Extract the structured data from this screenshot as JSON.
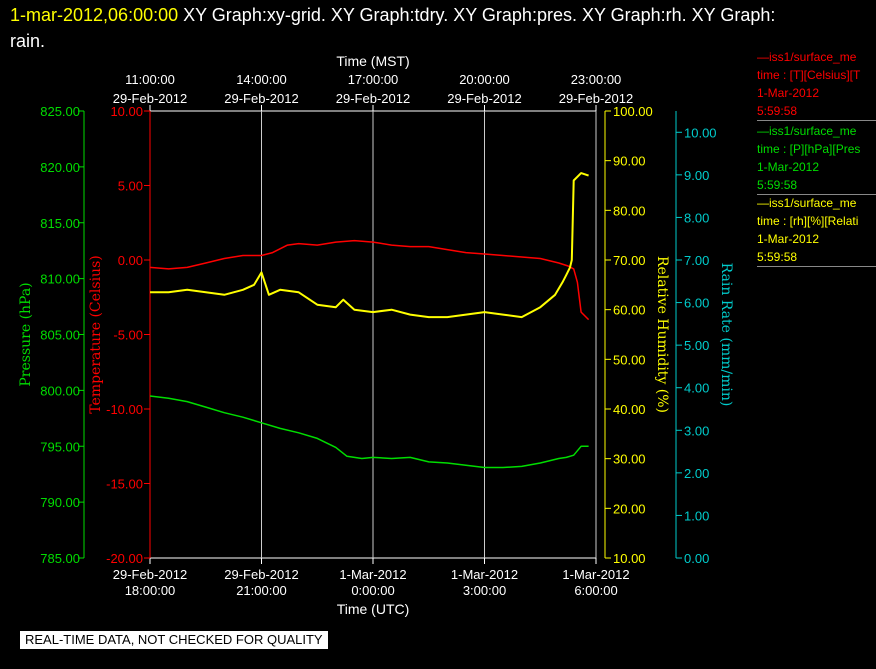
{
  "header": {
    "timestamp": "1-mar-2012,06:00:00",
    "graphs_line": "  XY Graph:xy-grid.  XY Graph:tdry.  XY Graph:pres.  XY Graph:rh.  XY Graph:",
    "graphs_line2": "rain."
  },
  "footer": {
    "label": "REAL-TIME DATA, NOT CHECKED FOR QUALITY"
  },
  "legend": [
    {
      "line1": "—iss1/surface_me",
      "line2": "time : [T][Celsius][T",
      "line3": "1-Mar-2012",
      "line4": "5:59:58",
      "color": "#ff0000"
    },
    {
      "line1": "—iss1/surface_me",
      "line2": "time : [P][hPa][Pres",
      "line3": "1-Mar-2012",
      "line4": "5:59:58",
      "color": "#00dd00"
    },
    {
      "line1": "—iss1/surface_me",
      "line2": "time : [rh][%][Relati",
      "line3": "1-Mar-2012",
      "line4": "5:59:58",
      "color": "#ffff00"
    }
  ],
  "chart_data": {
    "type": "line",
    "top_axis": {
      "title": "Time (MST)",
      "ticks": [
        {
          "time": "11:00:00",
          "date": "29-Feb-2012"
        },
        {
          "time": "14:00:00",
          "date": "29-Feb-2012"
        },
        {
          "time": "17:00:00",
          "date": "29-Feb-2012"
        },
        {
          "time": "20:00:00",
          "date": "29-Feb-2012"
        },
        {
          "time": "23:00:00",
          "date": "29-Feb-2012"
        }
      ]
    },
    "bottom_axis": {
      "title": "Time (UTC)",
      "xlim": [
        "2012-02-29 18:00",
        "2012-03-01 06:00"
      ],
      "ticks": [
        {
          "date": "29-Feb-2012",
          "time": "18:00:00"
        },
        {
          "date": "29-Feb-2012",
          "time": "21:00:00"
        },
        {
          "date": "1-Mar-2012",
          "time": "0:00:00"
        },
        {
          "date": "1-Mar-2012",
          "time": "3:00:00"
        },
        {
          "date": "1-Mar-2012",
          "time": "6:00:00"
        }
      ]
    },
    "axes": {
      "pressure": {
        "label": "Pressure (hPa)",
        "range": [
          785,
          825
        ],
        "ticks": [
          "785.00",
          "790.00",
          "795.00",
          "800.00",
          "805.00",
          "810.00",
          "815.00",
          "820.00",
          "825.00"
        ],
        "color": "#00dd00"
      },
      "temperature": {
        "label": "Temperature (Celsius)",
        "range": [
          -20,
          10
        ],
        "ticks": [
          "-20.00",
          "-15.00",
          "-10.00",
          "-5.00",
          "0.00",
          "5.00",
          "10.00"
        ],
        "color": "#ff0000"
      },
      "humidity": {
        "label": "Relative Humidity (%)",
        "range": [
          10,
          100
        ],
        "ticks": [
          "10.00",
          "20.00",
          "30.00",
          "40.00",
          "50.00",
          "60.00",
          "70.00",
          "80.00",
          "90.00",
          "100.00"
        ],
        "color": "#ffff00"
      },
      "rain": {
        "label": "Rain Rate (mm/min)",
        "range": [
          0,
          10.5
        ],
        "ticks": [
          "0.00",
          "1.00",
          "2.00",
          "3.00",
          "4.00",
          "5.00",
          "6.00",
          "7.00",
          "8.00",
          "9.00",
          "10.00"
        ],
        "color": "#00cccc"
      }
    },
    "grid": "vertical lines at bottom-axis ticks",
    "series": [
      {
        "name": "iss1/surface_met time : [T][Celsius][T",
        "axis": "temperature",
        "color": "#ff0000",
        "x_hours_utc": [
          0,
          0.5,
          1,
          1.5,
          2,
          2.5,
          3,
          3.3,
          3.7,
          4,
          4.5,
          5,
          5.5,
          6,
          6.5,
          7,
          7.5,
          8,
          8.5,
          9,
          9.5,
          10,
          10.5,
          11,
          11.25,
          11.4,
          11.5,
          11.6,
          11.8
        ],
        "values": [
          -0.5,
          -0.6,
          -0.5,
          -0.2,
          0.1,
          0.3,
          0.3,
          0.5,
          1.0,
          1.1,
          1.0,
          1.2,
          1.3,
          1.2,
          1.0,
          0.9,
          0.9,
          0.7,
          0.5,
          0.4,
          0.3,
          0.2,
          0.1,
          -0.2,
          -0.4,
          -0.6,
          -1.5,
          -3.5,
          -4.0
        ]
      },
      {
        "name": "iss1/surface_met time : [P][hPa][Pres",
        "axis": "pressure",
        "color": "#00dd00",
        "x_hours_utc": [
          0,
          0.5,
          1,
          1.5,
          2,
          2.5,
          3,
          3.5,
          4,
          4.5,
          5,
          5.3,
          5.7,
          6,
          6.5,
          7,
          7.5,
          8,
          8.5,
          9,
          9.5,
          10,
          10.5,
          11,
          11.2,
          11.4,
          11.6,
          11.8
        ],
        "values": [
          799.5,
          799.3,
          799.0,
          798.5,
          798.0,
          797.6,
          797.1,
          796.6,
          796.2,
          795.7,
          794.9,
          794.1,
          793.9,
          794.0,
          793.9,
          794.0,
          793.6,
          793.5,
          793.3,
          793.1,
          793.1,
          793.2,
          793.5,
          793.9,
          794.0,
          794.2,
          795.0,
          795.0
        ]
      },
      {
        "name": "iss1/surface_met time : [rh][%][Relati",
        "axis": "humidity",
        "color": "#ffff00",
        "x_hours_utc": [
          0,
          0.5,
          1,
          1.5,
          2,
          2.5,
          2.8,
          3,
          3.2,
          3.5,
          4,
          4.5,
          5,
          5.2,
          5.5,
          6,
          6.5,
          7,
          7.5,
          8,
          8.5,
          9,
          9.5,
          10,
          10.5,
          10.9,
          11.1,
          11.2,
          11.3,
          11.35,
          11.4,
          11.6,
          11.8
        ],
        "values": [
          63.5,
          63.5,
          64.0,
          63.5,
          63.0,
          64.0,
          65.0,
          67.5,
          63.0,
          64.0,
          63.5,
          61.0,
          60.5,
          62.0,
          60.0,
          59.5,
          60.0,
          59.0,
          58.5,
          58.5,
          59.0,
          59.5,
          59.0,
          58.5,
          60.5,
          63.0,
          65.5,
          67.0,
          68.5,
          70.0,
          86.0,
          87.5,
          87.0
        ]
      }
    ]
  }
}
